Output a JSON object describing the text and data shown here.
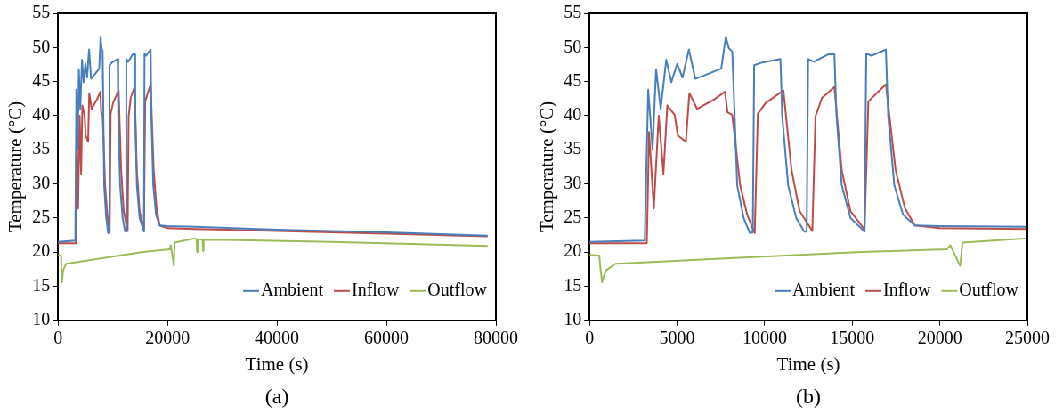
{
  "chart_data": [
    {
      "type": "line",
      "xlabel": "Time (s)",
      "ylabel": "Temperature (°C)",
      "annotations": [
        "(a)"
      ],
      "xlim": [
        0,
        80000
      ],
      "xticks": [
        0,
        20000,
        40000,
        60000,
        80000
      ],
      "ylim": [
        10,
        55
      ],
      "yticks": [
        10,
        15,
        20,
        25,
        30,
        35,
        40,
        45,
        50,
        55
      ],
      "grid": false,
      "legend": "bottom right",
      "series": [
        {
          "name": "Ambient",
          "color": "#4a7ebb",
          "x": [
            0,
            3150,
            3350,
            3600,
            3800,
            4060,
            4380,
            4670,
            5000,
            5310,
            5670,
            6040,
            7520,
            7780,
            7950,
            8150,
            8430,
            8800,
            9150,
            9320,
            9400,
            9860,
            10900,
            11000,
            11340,
            11800,
            12260,
            12400,
            12480,
            12800,
            13650,
            13980,
            14100,
            14400,
            14900,
            15700,
            15800,
            16100,
            16920,
            17050,
            17400,
            17900,
            18570,
            20000,
            25000,
            40000,
            60000,
            78500
          ],
          "values": [
            21.5,
            21.7,
            43.8,
            35.1,
            46.8,
            41.0,
            48.2,
            44.9,
            47.6,
            45.6,
            49.7,
            45.4,
            46.9,
            51.6,
            49.9,
            49.4,
            29.8,
            25.0,
            22.8,
            22.9,
            47.4,
            47.8,
            48.3,
            40.0,
            29.8,
            25.0,
            23.0,
            23.0,
            48.3,
            47.9,
            49.0,
            49.0,
            40.0,
            29.8,
            25.0,
            23.0,
            49.1,
            48.8,
            49.7,
            40.0,
            29.8,
            25.5,
            23.9,
            23.8,
            23.7,
            23.3,
            22.9,
            22.4
          ]
        },
        {
          "name": "Inflow",
          "color": "#be4b48",
          "x": [
            0,
            3270,
            3400,
            3670,
            3950,
            4220,
            4440,
            4860,
            5040,
            5500,
            5700,
            6140,
            7130,
            7730,
            7880,
            8150,
            8600,
            9000,
            9430,
            9610,
            10070,
            11070,
            11530,
            12000,
            12720,
            12900,
            13270,
            13980,
            14400,
            14900,
            15700,
            15920,
            16920,
            17470,
            18000,
            18570,
            20000,
            25000,
            40000,
            60000,
            78500
          ],
          "values": [
            21.3,
            21.3,
            37.6,
            26.4,
            40.0,
            31.5,
            41.5,
            40.1,
            37.1,
            36.2,
            43.3,
            41.0,
            42.4,
            43.5,
            40.5,
            40.1,
            29.8,
            25.5,
            22.8,
            40.3,
            41.9,
            43.7,
            32.1,
            26.0,
            23.1,
            39.9,
            42.6,
            44.2,
            32.0,
            26.0,
            23.3,
            42.1,
            44.6,
            32.1,
            26.5,
            23.9,
            23.5,
            23.4,
            23.1,
            22.7,
            22.3
          ]
        },
        {
          "name": "Outflow",
          "color": "#9bbb59",
          "x": [
            0,
            550,
            710,
            930,
            1480,
            15190,
            20390,
            20600,
            21160,
            21300,
            25000,
            25300,
            25400,
            25500,
            26400,
            26500,
            26600,
            30000,
            50000,
            78500
          ],
          "values": [
            19.6,
            19.5,
            15.6,
            17.3,
            18.3,
            20.0,
            20.4,
            21.0,
            18.0,
            21.4,
            22.0,
            21.9,
            20.0,
            21.9,
            21.8,
            20.2,
            21.8,
            21.8,
            21.5,
            20.9
          ]
        }
      ]
    },
    {
      "type": "line",
      "xlabel": "Time (s)",
      "ylabel": "Temperature (°C)",
      "annotations": [
        "(b)"
      ],
      "xlim": [
        0,
        25000
      ],
      "xticks": [
        0,
        5000,
        10000,
        15000,
        20000,
        25000
      ],
      "ylim": [
        10,
        55
      ],
      "yticks": [
        10,
        15,
        20,
        25,
        30,
        35,
        40,
        45,
        50,
        55
      ],
      "grid": false,
      "legend": "bottom right",
      "series": [
        {
          "name": "Ambient",
          "color": "#4a7ebb",
          "x": [
            0,
            3150,
            3350,
            3600,
            3800,
            4060,
            4380,
            4670,
            5000,
            5310,
            5670,
            6040,
            7520,
            7780,
            7950,
            8150,
            8430,
            8800,
            9150,
            9320,
            9400,
            9860,
            10900,
            11000,
            11340,
            11800,
            12260,
            12400,
            12480,
            12800,
            13650,
            13980,
            14100,
            14400,
            14900,
            15700,
            15800,
            16100,
            16920,
            17050,
            17400,
            17900,
            18570,
            20000,
            25000
          ],
          "values": [
            21.5,
            21.7,
            43.8,
            35.1,
            46.8,
            41.0,
            48.2,
            44.9,
            47.6,
            45.6,
            49.7,
            45.4,
            46.9,
            51.6,
            49.9,
            49.4,
            29.8,
            25.0,
            22.8,
            22.9,
            47.4,
            47.8,
            48.3,
            40.0,
            29.8,
            25.0,
            23.0,
            23.0,
            48.3,
            47.9,
            49.0,
            49.0,
            40.0,
            29.8,
            25.0,
            23.0,
            49.1,
            48.8,
            49.7,
            40.0,
            29.8,
            25.5,
            23.9,
            23.8,
            23.7
          ]
        },
        {
          "name": "Inflow",
          "color": "#be4b48",
          "x": [
            0,
            3270,
            3400,
            3670,
            3950,
            4220,
            4440,
            4860,
            5040,
            5500,
            5700,
            6140,
            7130,
            7730,
            7880,
            8150,
            8600,
            9000,
            9430,
            9610,
            10070,
            11070,
            11530,
            12000,
            12720,
            12900,
            13270,
            13980,
            14400,
            14900,
            15700,
            15920,
            16920,
            17470,
            18000,
            18570,
            20000,
            25000
          ],
          "values": [
            21.3,
            21.3,
            37.6,
            26.4,
            40.0,
            31.5,
            41.5,
            40.1,
            37.1,
            36.2,
            43.3,
            41.0,
            42.4,
            43.5,
            40.5,
            40.1,
            29.8,
            25.5,
            22.8,
            40.3,
            41.9,
            43.7,
            32.1,
            26.0,
            23.1,
            39.9,
            42.6,
            44.2,
            32.0,
            26.0,
            23.3,
            42.1,
            44.6,
            32.1,
            26.5,
            23.9,
            23.5,
            23.4
          ]
        },
        {
          "name": "Outflow",
          "color": "#9bbb59",
          "x": [
            0,
            550,
            710,
            930,
            1480,
            15190,
            20390,
            20600,
            21160,
            21300,
            25000
          ],
          "values": [
            19.6,
            19.5,
            15.6,
            17.3,
            18.3,
            20.0,
            20.4,
            21.0,
            18.0,
            21.4,
            22.0
          ]
        }
      ]
    }
  ]
}
